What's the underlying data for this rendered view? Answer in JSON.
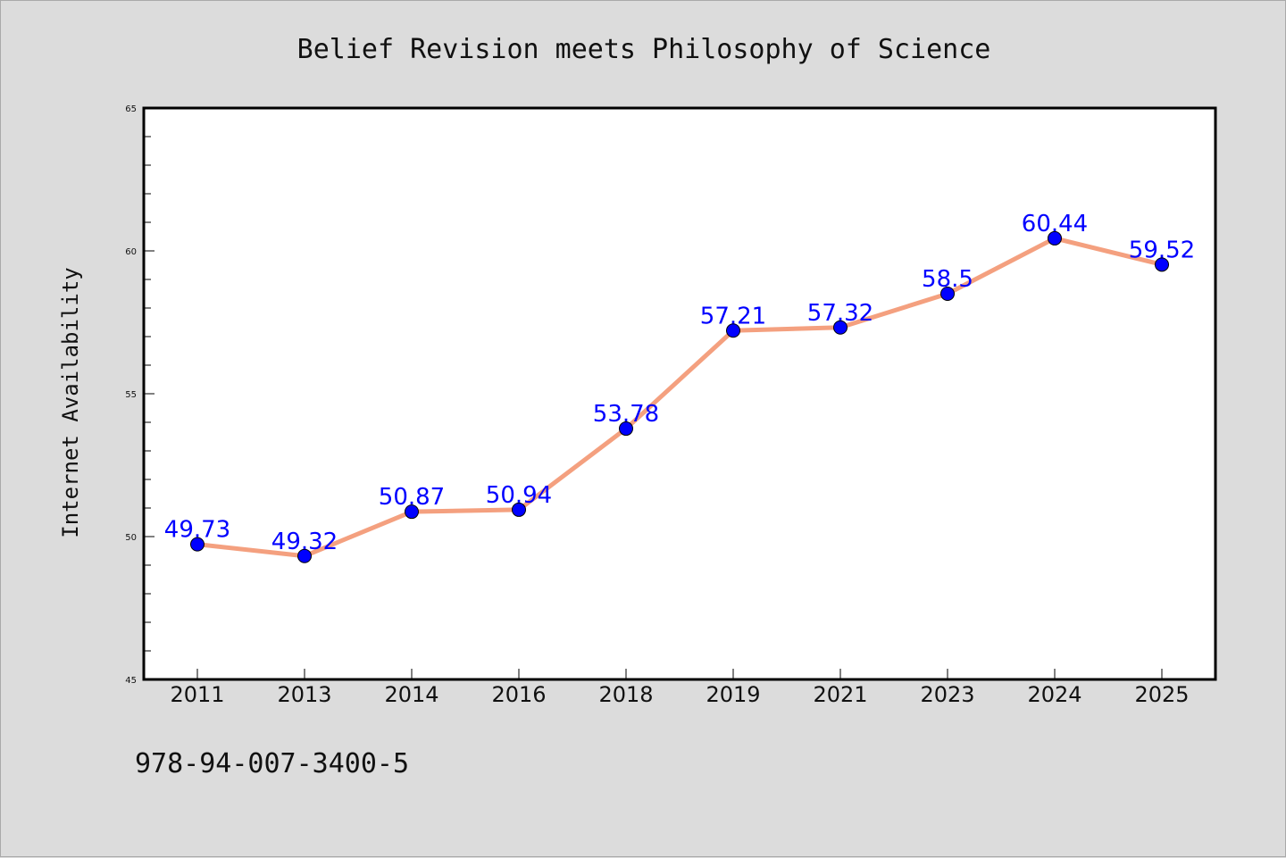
{
  "chart_data": {
    "type": "line",
    "title": "Belief Revision meets Philosophy of Science",
    "xlabel": "",
    "ylabel": "Internet Availability",
    "categories": [
      "2011",
      "2013",
      "2014",
      "2016",
      "2018",
      "2019",
      "2021",
      "2023",
      "2024",
      "2025"
    ],
    "series": [
      {
        "values": [
          49.73,
          49.32,
          50.87,
          50.94,
          53.78,
          57.21,
          57.32,
          58.5,
          60.44,
          59.52
        ],
        "data_labels": [
          "49.73",
          "49.32",
          "50.87",
          "50.94",
          "53.78",
          "57.21",
          "57.32",
          "58.5",
          "60.44",
          "59.52"
        ],
        "line_color": "#f4a07f",
        "marker_color": "#0000ff"
      }
    ],
    "y_ticks": [
      "45",
      "50",
      "55",
      "60",
      "65"
    ],
    "ylim": [
      45,
      65
    ],
    "grid": false,
    "legend": "none",
    "background_color": "#dcdcdc",
    "plot_background_color": "#ffffff",
    "label_color": "#0000ff"
  },
  "footer": {
    "isbn": "978-94-007-3400-5"
  }
}
